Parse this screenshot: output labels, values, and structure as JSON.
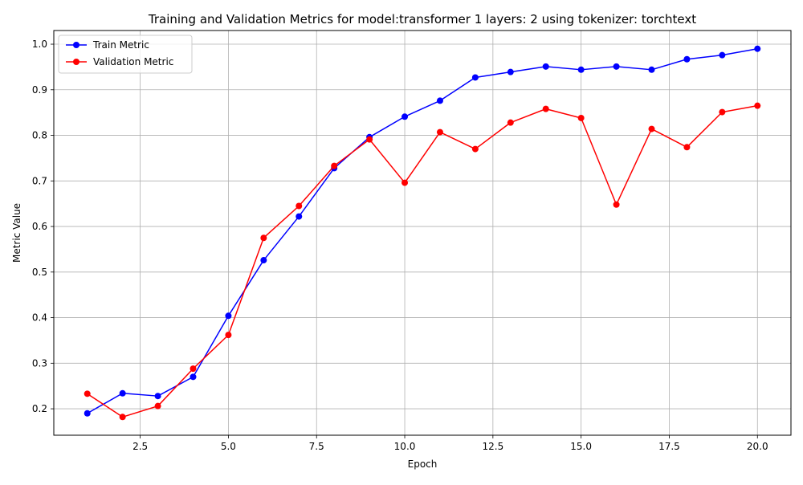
{
  "chart_data": {
    "type": "line",
    "title": "Training and Validation Metrics for model:transformer 1 layers: 2 using tokenizer: torchtext",
    "xlabel": "Epoch",
    "ylabel": "Metric Value",
    "xlim": [
      0.05,
      20.95
    ],
    "ylim": [
      0.142,
      1.03
    ],
    "grid": true,
    "legend_position": "top-left",
    "x_ticks": [
      2.5,
      5.0,
      7.5,
      10.0,
      12.5,
      15.0,
      17.5,
      20.0
    ],
    "x_tick_labels": [
      "2.5",
      "5.0",
      "7.5",
      "10.0",
      "12.5",
      "15.0",
      "17.5",
      "20.0"
    ],
    "y_ticks": [
      0.2,
      0.3,
      0.4,
      0.5,
      0.6,
      0.7,
      0.8,
      0.9,
      1.0
    ],
    "y_tick_labels": [
      "0.2",
      "0.3",
      "0.4",
      "0.5",
      "0.6",
      "0.7",
      "0.8",
      "0.9",
      "1.0"
    ],
    "x": [
      1,
      2,
      3,
      4,
      5,
      6,
      7,
      8,
      9,
      10,
      11,
      12,
      13,
      14,
      15,
      16,
      17,
      18,
      19,
      20
    ],
    "series": [
      {
        "name": "Train Metric",
        "color": "#0000ff",
        "marker": "circle",
        "values": [
          0.19,
          0.234,
          0.228,
          0.27,
          0.404,
          0.526,
          0.622,
          0.728,
          0.796,
          0.841,
          0.876,
          0.927,
          0.939,
          0.951,
          0.944,
          0.951,
          0.944,
          0.967,
          0.976,
          0.99
        ]
      },
      {
        "name": "Validation Metric",
        "color": "#ff0000",
        "marker": "circle",
        "values": [
          0.233,
          0.182,
          0.206,
          0.288,
          0.362,
          0.575,
          0.645,
          0.733,
          0.791,
          0.696,
          0.807,
          0.77,
          0.828,
          0.858,
          0.838,
          0.648,
          0.814,
          0.774,
          0.851,
          0.865
        ]
      }
    ]
  }
}
